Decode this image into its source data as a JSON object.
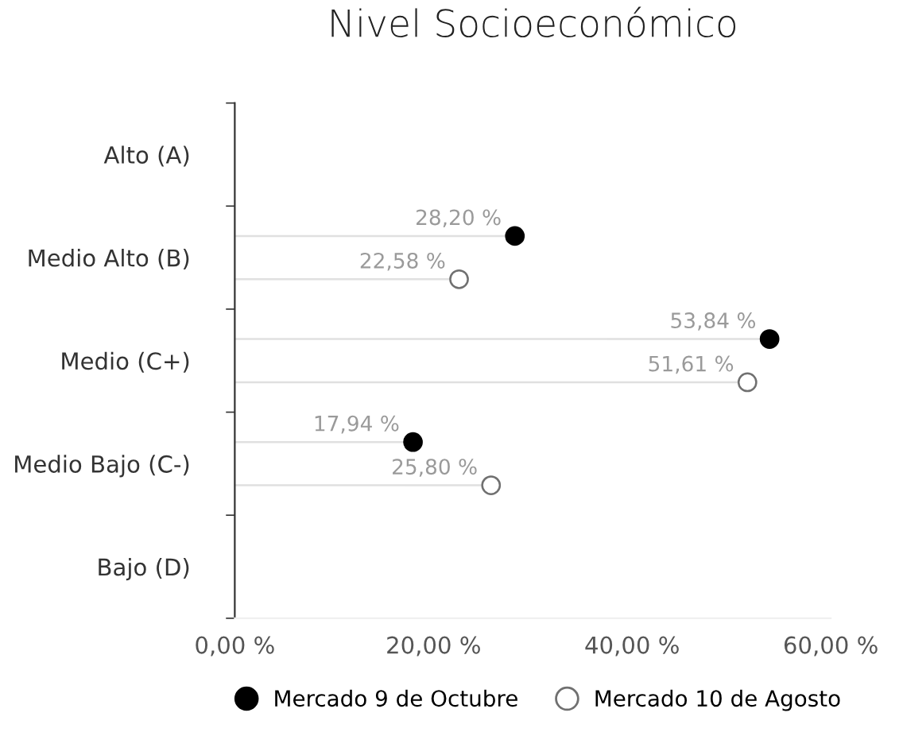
{
  "chart_data": {
    "type": "lollipop",
    "orientation": "horizontal",
    "title": "Nivel Socioeconómico",
    "categories": [
      "Alto (A)",
      "Medio Alto (B)",
      "Medio (C+)",
      "Medio Bajo (C-)",
      "Bajo (D)"
    ],
    "series": [
      {
        "name": "Mercado 9 de Octubre",
        "color": "#000000",
        "values": [
          null,
          28.2,
          53.84,
          17.94,
          null
        ],
        "value_labels": [
          null,
          "28,20 %",
          "53,84 %",
          "17,94 %",
          null
        ]
      },
      {
        "name": "Mercado 10 de Agosto",
        "color": "#ffffff",
        "values": [
          null,
          22.58,
          51.61,
          25.8,
          null
        ],
        "value_labels": [
          null,
          "22,58 %",
          "51,61 %",
          "25,80 %",
          null
        ]
      }
    ],
    "xlim": [
      0,
      60
    ],
    "xticks": [
      {
        "value": 0,
        "label": "0,00 %"
      },
      {
        "value": 20,
        "label": "20,00 %"
      },
      {
        "value": 40,
        "label": "40,00 %"
      },
      {
        "value": 60,
        "label": "60,00 %"
      }
    ],
    "grid": false,
    "legend": "bottom",
    "marker": "circle"
  }
}
